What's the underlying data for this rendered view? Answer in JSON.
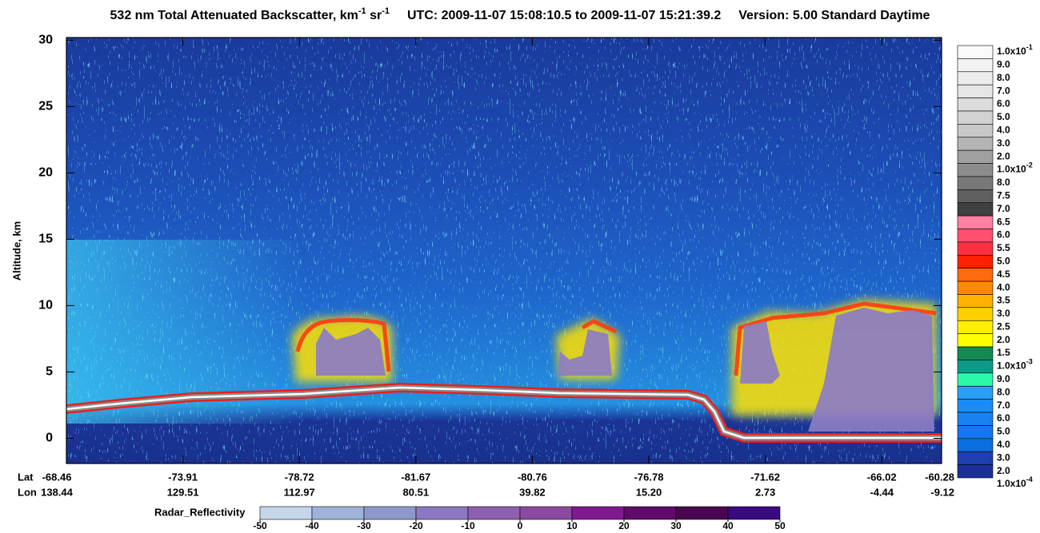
{
  "chart_data": {
    "type": "heatmap",
    "title": {
      "main": "532 nm Total Attenuated Backscatter, km",
      "sup1": "-1",
      "unit2": " sr",
      "sup2": "-1",
      "utc": "UTC:  2009-11-07 15:08:10.5  to  2009-11-07 15:21:39.2",
      "version": "Version: 5.00  Standard  Daytime"
    },
    "ylabel": "Altitude, km",
    "ylim": [
      -1.9,
      30.2
    ],
    "yticks": [
      0,
      5,
      10,
      15,
      20,
      25,
      30
    ],
    "x_rows": [
      {
        "name": "Lat",
        "labels": [
          "-68.46",
          "-73.91",
          "-78.72",
          "-81.67",
          "-80.76",
          "-76.78",
          "-71.62",
          "-66.02",
          "-60.28"
        ]
      },
      {
        "name": "Lon",
        "labels": [
          "138.44",
          "129.51",
          "112.97",
          "80.51",
          "39.82",
          "15.20",
          "2.73",
          "-4.44",
          "-9.12"
        ]
      }
    ],
    "colorbar": {
      "labels": [
        {
          "text": "1.0x10",
          "sup": "-1"
        },
        "9.0",
        "8.0",
        "7.0",
        "6.0",
        "5.0",
        "4.0",
        "3.0",
        "2.0",
        {
          "text": "1.0x10",
          "sup": "-2"
        },
        "8.0",
        "7.5",
        "7.0",
        "6.5",
        "6.0",
        "5.5",
        "5.0",
        "4.5",
        "4.0",
        "3.5",
        "3.0",
        "2.5",
        "2.0",
        "1.5",
        {
          "text": "1.0x10",
          "sup": "-3"
        },
        "9.0",
        "8.0",
        "7.0",
        "6.0",
        "5.0",
        "4.0",
        "3.0",
        "2.0",
        {
          "text": "1.0x10",
          "sup": "-4"
        }
      ],
      "colors": [
        "#fafafa",
        "#f2f2f2",
        "#ececec",
        "#e6e6e6",
        "#dcdcdc",
        "#d2d2d2",
        "#c8c8c8",
        "#b4b4b4",
        "#a0a0a0",
        "#8c8c8c",
        "#787878",
        "#606060",
        "#404040",
        "#ff80a0",
        "#ff5070",
        "#ff3040",
        "#ff2000",
        "#ff6a10",
        "#ff8a00",
        "#ffb000",
        "#ffd000",
        "#ffee00",
        "#ffff00",
        "#138a50",
        "#0e9a86",
        "#2afaa8",
        "#2aa0f5",
        "#1a8cf5",
        "#1a82f0",
        "#1278ee",
        "#0a6fe0",
        "#1f3fb0",
        "#1a2f9a"
      ]
    },
    "radar_colorbar": {
      "title": "Radar_Reflectivity",
      "ticks": [
        -50,
        -40,
        -30,
        -20,
        -10,
        0,
        10,
        20,
        30,
        40,
        50
      ],
      "colors": [
        "#c6d6ea",
        "#9fb3d8",
        "#8f98cc",
        "#8c78c0",
        "#8e60b0",
        "#8a4aa0",
        "#801890",
        "#600a6a",
        "#4a0550",
        "#3a0a80"
      ]
    }
  }
}
